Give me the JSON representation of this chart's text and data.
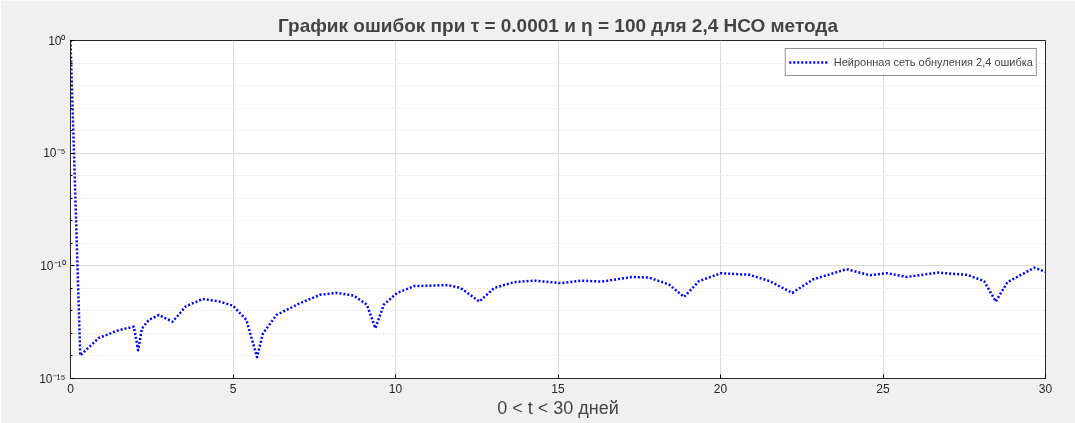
{
  "chart_data": {
    "type": "line",
    "title": "График ошибок при τ = 0.0001 и η = 100 для 2,4 НСО метода",
    "xlabel": "0 < t < 30 дней",
    "log": "y",
    "grid": true,
    "legend": "top right",
    "line_style": "dotted",
    "marker": "none",
    "xlim": [
      0,
      30
    ],
    "xticks": [
      0,
      5,
      10,
      15,
      20,
      25,
      30
    ],
    "ylim": [
      1e-15,
      1
    ],
    "yticks": [
      {
        "value": 1e-15,
        "label": "10⁻¹⁵"
      },
      {
        "value": 1e-10,
        "label": "10⁻¹⁰"
      },
      {
        "value": 1e-05,
        "label": "10⁻⁵"
      },
      {
        "value": 1,
        "label": "10⁰"
      }
    ],
    "series": [
      {
        "name": "Нейронная сеть обнуления 2,4 ошибка",
        "color": "#0000ff",
        "x": [
          0,
          0.2,
          0.3,
          0.87,
          1.49,
          1.95,
          2.08,
          2.2,
          2.41,
          2.72,
          3.14,
          3.55,
          4.07,
          4.58,
          5.0,
          5.41,
          5.74,
          5.92,
          6.34,
          7.06,
          7.68,
          8.19,
          8.71,
          9.12,
          9.38,
          9.64,
          10.05,
          10.57,
          11.6,
          12.0,
          12.58,
          13.04,
          13.66,
          14.28,
          15.1,
          15.73,
          16.35,
          17.28,
          17.8,
          18.41,
          18.88,
          19.34,
          20.01,
          20.89,
          21.51,
          22.21,
          22.85,
          23.88,
          24.6,
          25.12,
          25.74,
          26.67,
          27.59,
          28.11,
          28.47,
          28.83,
          29.66,
          30.0
        ],
        "values": [
          1,
          5e-10,
          1.05e-14,
          6.3e-14,
          1.4e-13,
          2e-13,
          1.8e-14,
          1.66e-13,
          4e-13,
          6.6e-13,
          3.3e-13,
          1.6e-12,
          3.4e-12,
          2.6e-12,
          1.7e-12,
          4e-13,
          8.9e-15,
          1e-13,
          6.6e-13,
          2.2e-12,
          5.2e-12,
          6.3e-12,
          4.8e-12,
          1.9e-12,
          1.7e-13,
          1.9e-12,
          6.3e-12,
          1.26e-11,
          1.4e-11,
          1.05e-11,
          2.6e-12,
          1.05e-11,
          1.9e-11,
          2.2e-11,
          1.7e-11,
          2.2e-11,
          2e-11,
          3.2e-11,
          3e-11,
          1.5e-11,
          4.2e-12,
          2.1e-11,
          4.7e-11,
          4e-11,
          2.1e-11,
          6.3e-12,
          2.5e-11,
          7.1e-11,
          3.8e-11,
          4.7e-11,
          3.2e-11,
          5e-11,
          4e-11,
          2.1e-11,
          2.6e-12,
          1.9e-11,
          8.3e-11,
          5.4e-11
        ]
      }
    ]
  }
}
